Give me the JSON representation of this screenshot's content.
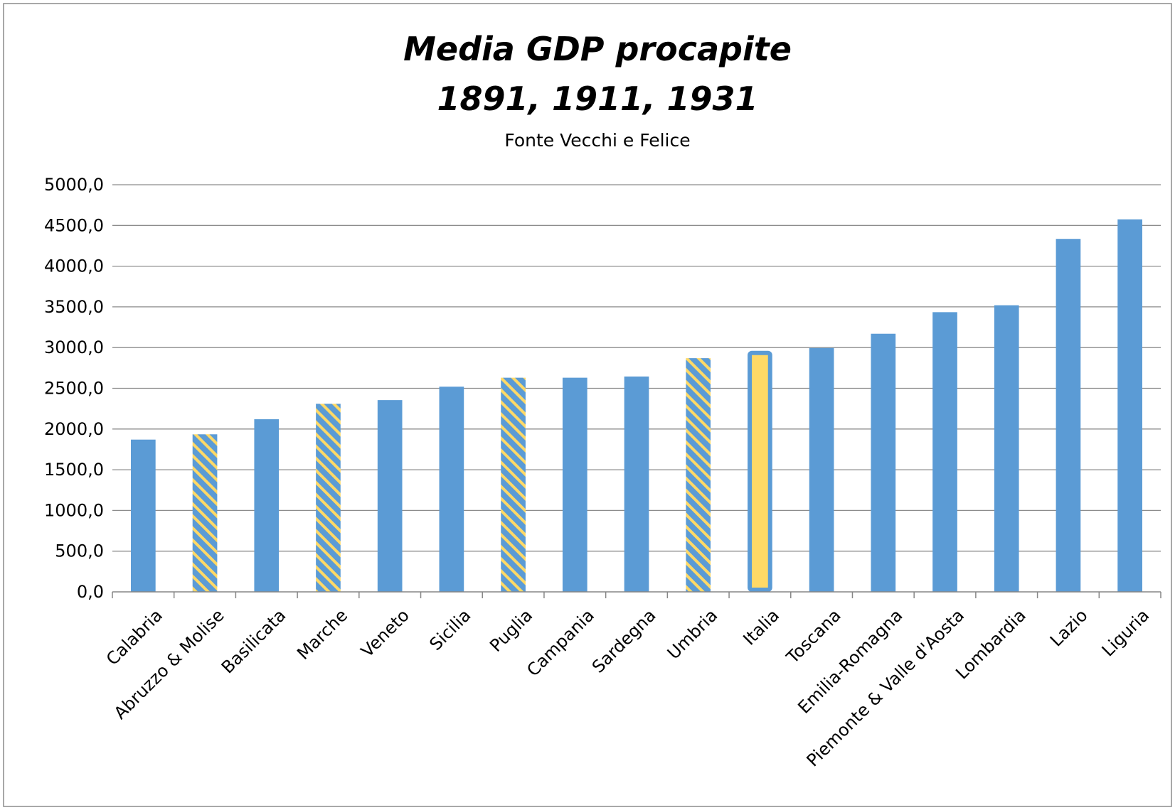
{
  "chart_data": {
    "type": "bar",
    "title_lines": [
      "Media GDP procapite",
      "1891, 1911, 1931"
    ],
    "subtitle": "Fonte Vecchi e Felice",
    "xlabel": "",
    "ylabel": "",
    "ylim": [
      0,
      5000
    ],
    "yticks": [
      "0,0",
      "500,0",
      "1000,0",
      "1500,0",
      "2000,0",
      "2500,0",
      "3000,0",
      "3500,0",
      "4000,0",
      "4500,0",
      "5000,0"
    ],
    "grid": true,
    "legend": "none",
    "colors": {
      "bar": "#5b9bd5",
      "highlight": "#ffd966",
      "stripe": "#ffd966"
    },
    "categories": [
      "Calabria",
      "Abruzzo & Molise",
      "Basilicata",
      "Marche",
      "Veneto",
      "Sicilia",
      "Puglia",
      "Campania",
      "Sardegna",
      "Umbria",
      "Italia",
      "Toscana",
      "Emilia-Romagna",
      "Piemonte & Valle d'Aosta",
      "Lombardia",
      "Lazio",
      "Liguria"
    ],
    "values": [
      1870,
      1935,
      2120,
      2310,
      2355,
      2520,
      2630,
      2630,
      2645,
      2870,
      2960,
      2995,
      3170,
      3435,
      3520,
      4335,
      4575
    ],
    "styles": [
      "solid",
      "striped",
      "solid",
      "striped",
      "solid",
      "solid",
      "striped",
      "solid",
      "solid",
      "striped",
      "highlight",
      "solid",
      "solid",
      "solid",
      "solid",
      "solid",
      "solid"
    ]
  }
}
